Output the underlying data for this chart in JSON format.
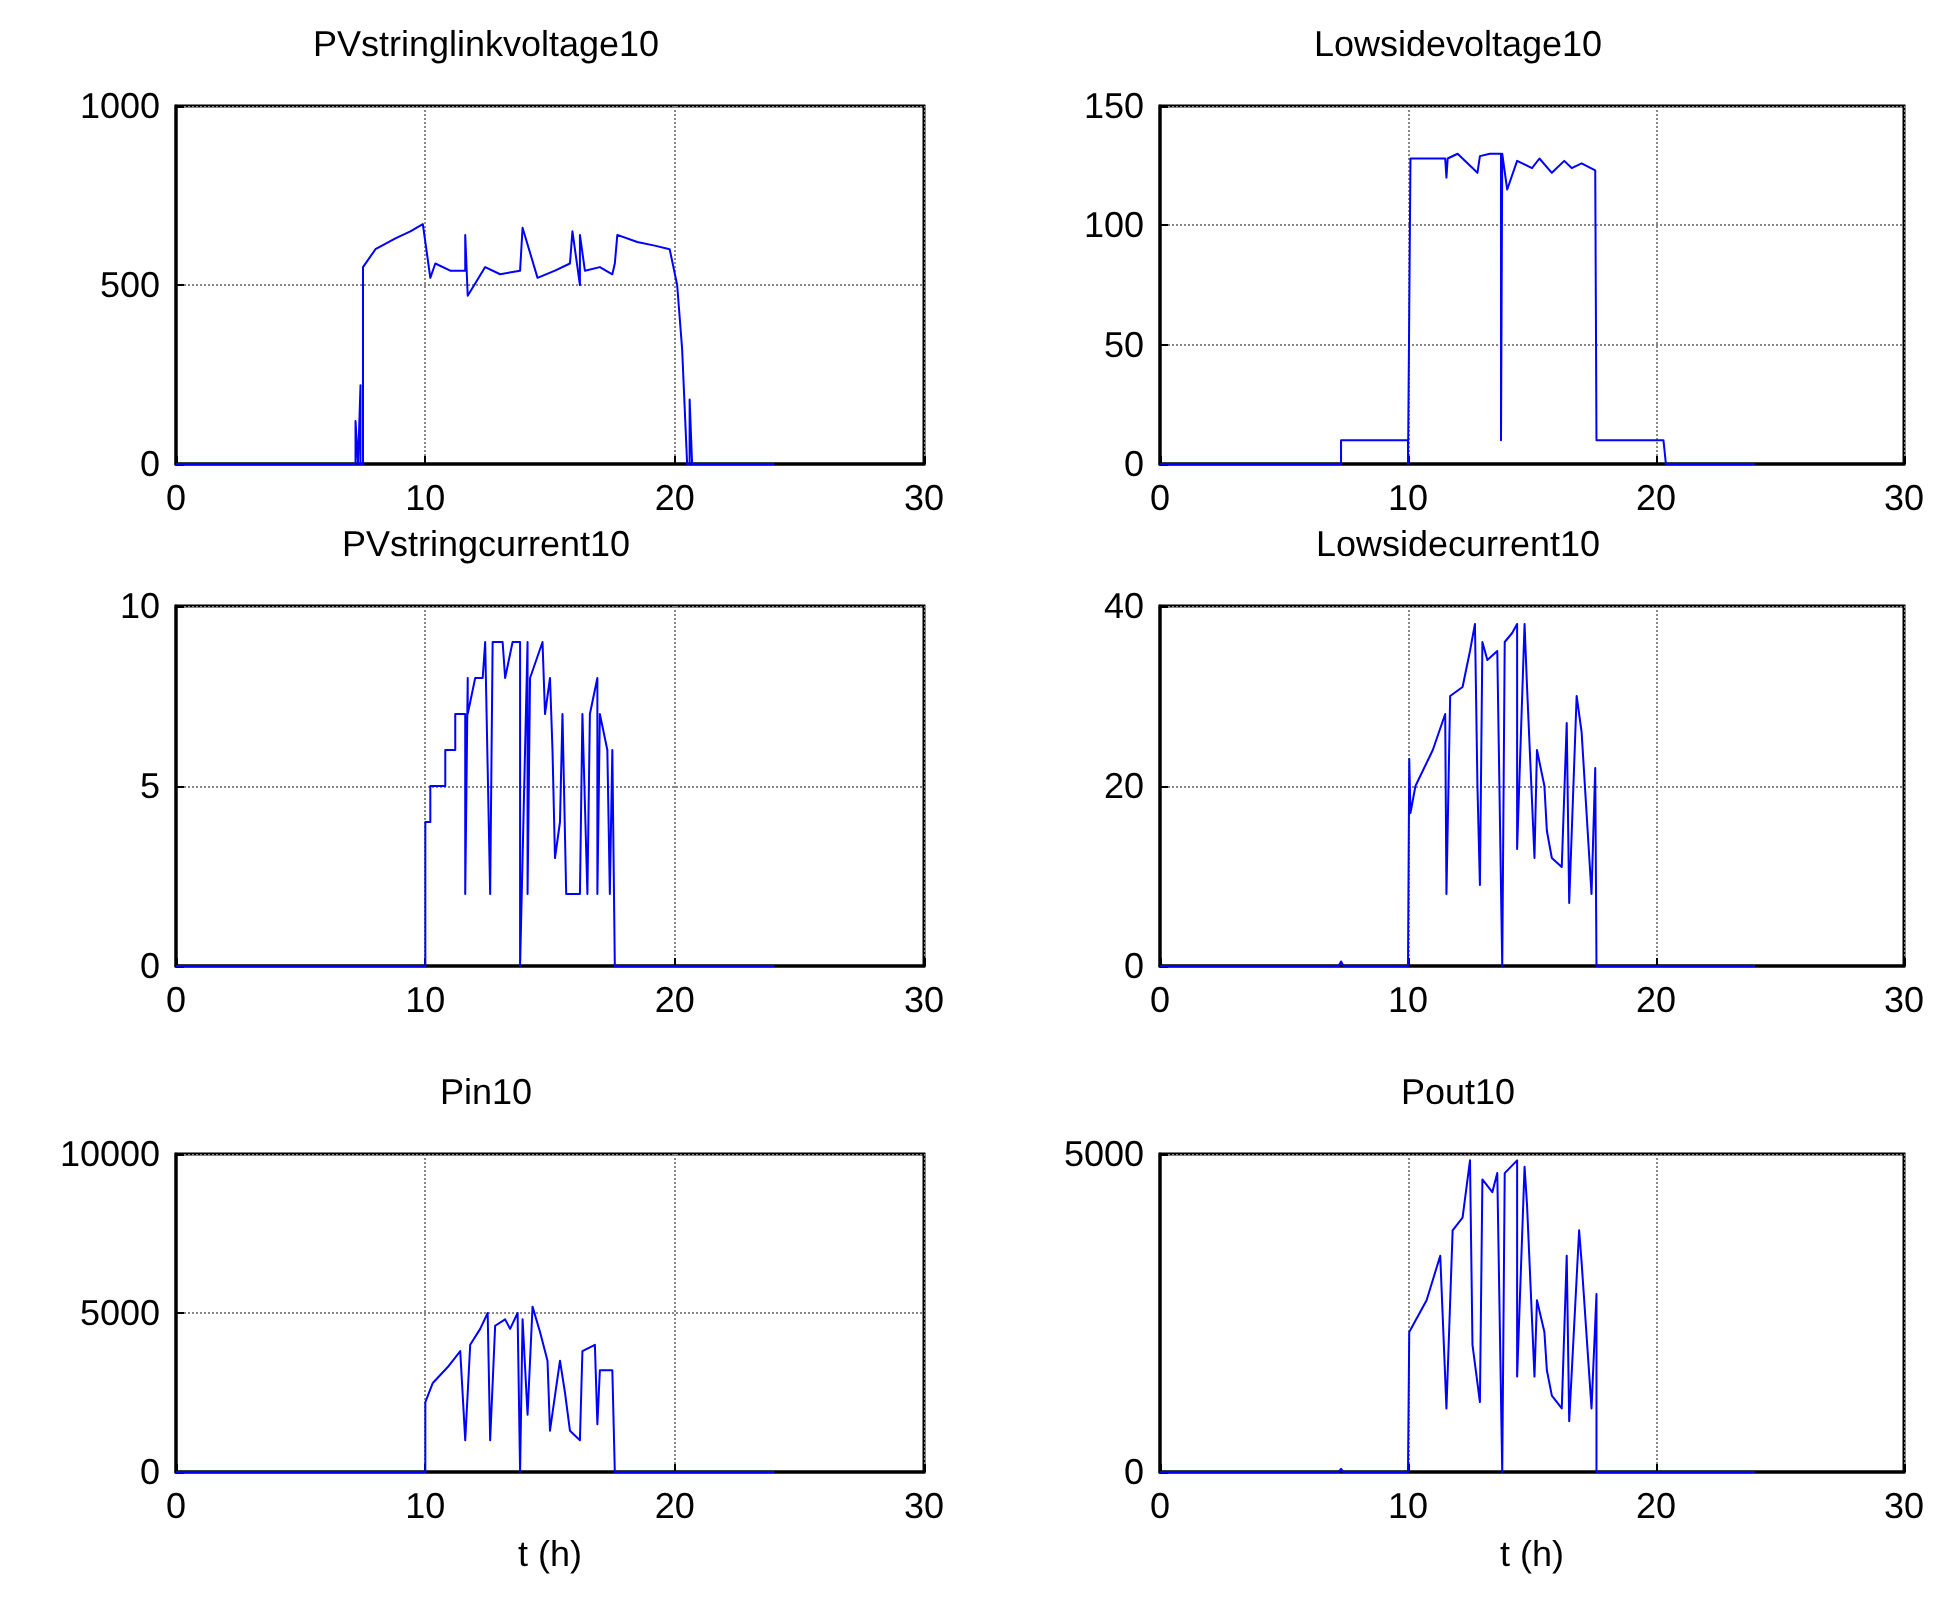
{
  "chart_data": [
    {
      "type": "line",
      "title": "PVstringlinkvoltage10",
      "color": "#0000ff",
      "xlim": [
        0,
        30
      ],
      "xticks": [
        0,
        10,
        20,
        30
      ],
      "ylim": [
        0,
        1000
      ],
      "yticks": [
        0,
        500,
        1000
      ],
      "grid": true,
      "x": [
        0,
        7.2,
        7.2,
        7.3,
        7.4,
        7.4,
        7.5,
        7.5,
        8.0,
        8.8,
        9.4,
        9.9,
        10.2,
        10.4,
        11.0,
        11.6,
        11.6,
        11.7,
        12.4,
        13.0,
        13.8,
        13.9,
        14.5,
        15.2,
        15.8,
        15.9,
        16.2,
        16.2,
        16.4,
        17.0,
        17.5,
        17.6,
        17.7,
        18.5,
        19.2,
        19.8,
        20.1,
        20.3,
        20.5,
        20.6,
        20.6,
        20.7,
        24
      ],
      "values": [
        0,
        0,
        120,
        0,
        220,
        0,
        0,
        550,
        600,
        630,
        650,
        670,
        520,
        560,
        540,
        540,
        640,
        470,
        550,
        530,
        540,
        660,
        520,
        540,
        560,
        650,
        500,
        640,
        540,
        550,
        530,
        560,
        640,
        620,
        610,
        600,
        500,
        320,
        0,
        0,
        180,
        0,
        0
      ]
    },
    {
      "type": "line",
      "title": "Lowsidevoltage10",
      "color": "#0000ff",
      "xlim": [
        0,
        30
      ],
      "xticks": [
        0,
        10,
        20,
        30
      ],
      "ylim": [
        0,
        150
      ],
      "yticks": [
        0,
        50,
        100,
        150
      ],
      "grid": true,
      "x": [
        0,
        7.3,
        7.3,
        10.0,
        10.0,
        10.1,
        11.5,
        11.55,
        11.6,
        12.0,
        12.8,
        12.9,
        13.3,
        13.75,
        13.75,
        13.8,
        14.0,
        14.4,
        15.0,
        15.3,
        15.8,
        16.3,
        16.6,
        17.0,
        17.55,
        17.6,
        20.3,
        20.4,
        24
      ],
      "values": [
        0,
        0,
        10,
        10,
        0,
        128,
        128,
        120,
        128,
        130,
        122,
        129,
        130,
        130,
        10,
        130,
        115,
        127,
        124,
        128,
        122,
        127,
        124,
        126,
        123,
        10,
        10,
        0,
        0
      ]
    },
    {
      "type": "line",
      "title": "PVstringcurrent10",
      "color": "#0000ff",
      "xlim": [
        0,
        30
      ],
      "xticks": [
        0,
        10,
        20,
        30
      ],
      "ylim": [
        0,
        10
      ],
      "yticks": [
        0,
        5,
        10
      ],
      "grid": true,
      "x": [
        0,
        10.0,
        10.0,
        10.2,
        10.2,
        10.8,
        10.8,
        11.2,
        11.2,
        11.6,
        11.6,
        11.7,
        11.7,
        12.0,
        12.3,
        12.4,
        12.6,
        12.7,
        13.1,
        13.2,
        13.5,
        13.8,
        13.8,
        14.1,
        14.1,
        14.2,
        14.7,
        14.8,
        15.0,
        15.1,
        15.2,
        15.4,
        15.5,
        15.65,
        16.2,
        16.3,
        16.5,
        16.6,
        16.9,
        16.9,
        17.0,
        17.3,
        17.4,
        17.5,
        17.6,
        24
      ],
      "values": [
        0,
        0,
        4,
        4,
        5,
        5,
        6,
        6,
        7,
        7,
        2,
        8,
        7,
        8,
        8,
        9,
        2,
        9,
        9,
        8,
        9,
        9,
        0,
        9,
        2,
        8,
        9,
        7,
        8,
        6,
        3,
        4,
        7,
        2,
        2,
        7,
        2,
        7,
        8,
        2,
        7,
        6,
        2,
        6,
        0,
        0
      ]
    },
    {
      "type": "line",
      "title": "Lowsidecurrent10",
      "color": "#0000ff",
      "xlim": [
        0,
        30
      ],
      "xticks": [
        0,
        10,
        20,
        30
      ],
      "ylim": [
        0,
        40
      ],
      "yticks": [
        0,
        20,
        40
      ],
      "grid": true,
      "x": [
        0,
        7.2,
        7.3,
        7.4,
        10.0,
        10.05,
        10.1,
        10.3,
        11.0,
        11.5,
        11.55,
        11.7,
        12.2,
        12.5,
        12.7,
        12.8,
        12.9,
        13.0,
        13.2,
        13.6,
        13.8,
        13.9,
        14.2,
        14.4,
        14.4,
        14.7,
        14.8,
        15.1,
        15.2,
        15.5,
        15.6,
        15.8,
        16.2,
        16.4,
        16.5,
        16.8,
        17.0,
        17.4,
        17.55,
        17.6,
        24
      ],
      "values": [
        0,
        0,
        0.5,
        0,
        0,
        23,
        17,
        20,
        24,
        28,
        8,
        30,
        31,
        35,
        38,
        20,
        9,
        36,
        34,
        35,
        0,
        36,
        37,
        38,
        13,
        38,
        31,
        12,
        24,
        20,
        15,
        12,
        11,
        27,
        7,
        30,
        26,
        8,
        22,
        0,
        0
      ]
    },
    {
      "type": "line",
      "title": "Pin10",
      "xlabel": "t (h)",
      "color": "#0000ff",
      "xlim": [
        0,
        30
      ],
      "xticks": [
        0,
        10,
        20,
        30
      ],
      "ylim": [
        0,
        10000
      ],
      "yticks": [
        0,
        5000,
        10000
      ],
      "grid": true,
      "x": [
        0,
        10.0,
        10.0,
        10.3,
        10.9,
        11.4,
        11.6,
        11.8,
        12.2,
        12.5,
        12.6,
        12.8,
        13.2,
        13.4,
        13.7,
        13.8,
        13.9,
        14.1,
        14.3,
        14.6,
        14.9,
        15.0,
        15.4,
        15.6,
        15.8,
        16.2,
        16.3,
        16.8,
        16.9,
        17.0,
        17.5,
        17.6,
        24
      ],
      "values": [
        0,
        0,
        2200,
        2800,
        3300,
        3800,
        1000,
        4000,
        4500,
        5000,
        1000,
        4600,
        4800,
        4500,
        5000,
        0,
        4800,
        1800,
        5200,
        4400,
        3500,
        1300,
        3500,
        2500,
        1300,
        1000,
        3800,
        4000,
        1500,
        3200,
        3200,
        0,
        0
      ]
    },
    {
      "type": "line",
      "title": "Pout10",
      "xlabel": "t (h)",
      "color": "#0000ff",
      "xlim": [
        0,
        30
      ],
      "xticks": [
        0,
        10,
        20,
        30
      ],
      "ylim": [
        0,
        5000
      ],
      "yticks": [
        0,
        5000
      ],
      "grid": true,
      "x": [
        0,
        7.2,
        7.3,
        7.4,
        10.0,
        10.05,
        10.75,
        11.3,
        11.55,
        11.8,
        12.2,
        12.5,
        12.6,
        12.9,
        13.0,
        13.4,
        13.6,
        13.8,
        13.9,
        14.4,
        14.4,
        14.7,
        14.8,
        15.1,
        15.2,
        15.5,
        15.6,
        15.8,
        16.2,
        16.4,
        16.5,
        16.9,
        17.0,
        17.4,
        17.6,
        17.6,
        24
      ],
      "values": [
        0,
        0,
        50,
        0,
        0,
        2200,
        2700,
        3400,
        1000,
        3800,
        4000,
        4900,
        2000,
        1100,
        4600,
        4400,
        4700,
        0,
        4700,
        4900,
        1500,
        4800,
        4200,
        1500,
        2700,
        2200,
        1600,
        1200,
        1000,
        3400,
        800,
        3800,
        3300,
        1000,
        2800,
        0,
        0
      ]
    }
  ]
}
